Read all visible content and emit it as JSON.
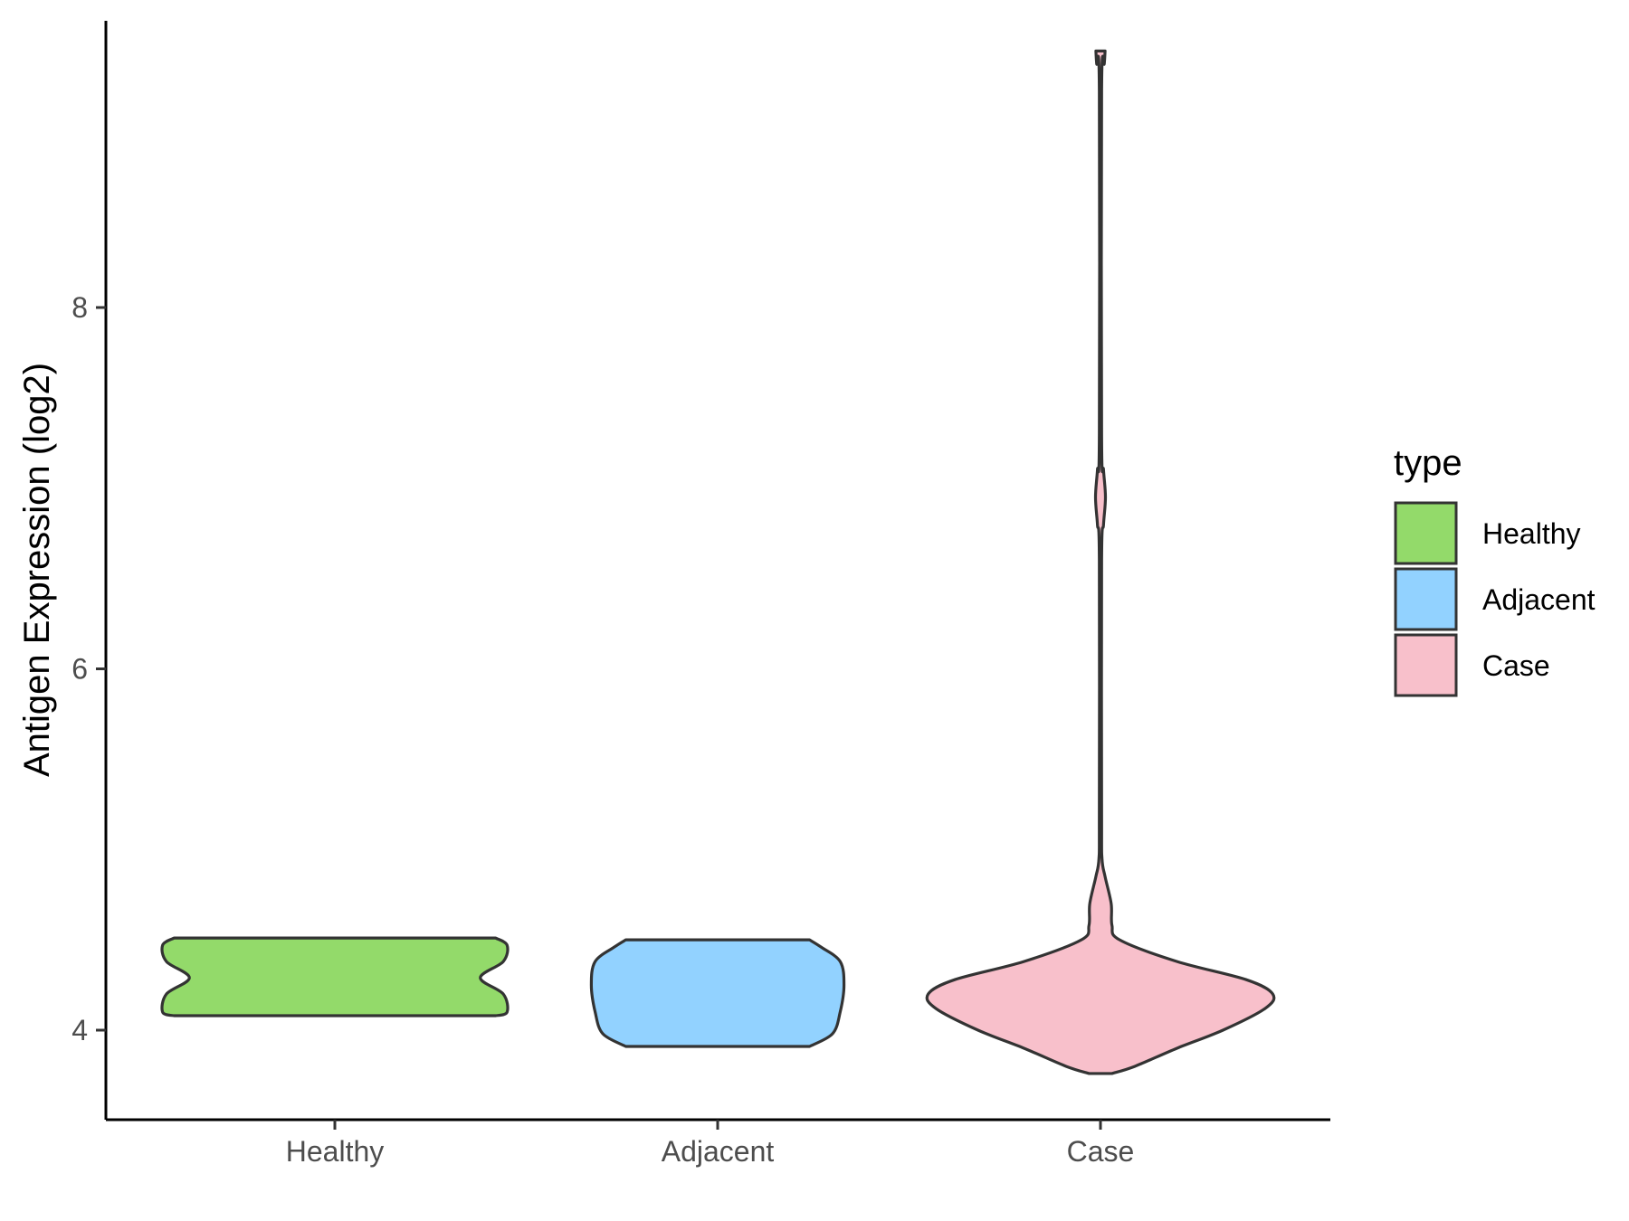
{
  "chart_data": {
    "type": "violin",
    "title": "",
    "xlabel": "",
    "ylabel": "Antigen Expression (log2)",
    "categories": [
      "Healthy",
      "Adjacent",
      "Case"
    ],
    "ylim": [
      3.5,
      9.6
    ],
    "yticks": [
      4,
      6,
      8
    ],
    "grid": false,
    "legend": {
      "title": "type",
      "position": "right",
      "entries": [
        {
          "label": "Healthy",
          "color": "#93DA6A"
        },
        {
          "label": "Adjacent",
          "color": "#92D2FF"
        },
        {
          "label": "Case",
          "color": "#F8C0CB"
        }
      ]
    },
    "outline_color": "#333333",
    "series": [
      {
        "category": "Healthy",
        "color": "#93DA6A",
        "y_min": 4.08,
        "y_max": 4.51,
        "density_profile": [
          {
            "y": 4.08,
            "halfwidth": 0.42
          },
          {
            "y": 4.1,
            "halfwidth": 0.45
          },
          {
            "y": 4.2,
            "halfwidth": 0.44
          },
          {
            "y": 4.29,
            "halfwidth": 0.38
          },
          {
            "y": 4.38,
            "halfwidth": 0.44
          },
          {
            "y": 4.47,
            "halfwidth": 0.45
          },
          {
            "y": 4.51,
            "halfwidth": 0.42
          }
        ]
      },
      {
        "category": "Adjacent",
        "color": "#92D2FF",
        "y_min": 3.91,
        "y_max": 4.5,
        "density_profile": [
          {
            "y": 3.91,
            "halfwidth": 0.24
          },
          {
            "y": 3.98,
            "halfwidth": 0.3
          },
          {
            "y": 4.1,
            "halfwidth": 0.32
          },
          {
            "y": 4.25,
            "halfwidth": 0.33
          },
          {
            "y": 4.38,
            "halfwidth": 0.32
          },
          {
            "y": 4.46,
            "halfwidth": 0.27
          },
          {
            "y": 4.5,
            "halfwidth": 0.24
          }
        ]
      },
      {
        "category": "Case",
        "color": "#F8C0CB",
        "y_min": 3.76,
        "y_max": 9.42,
        "density_profile": [
          {
            "y": 3.76,
            "halfwidth": 0.03
          },
          {
            "y": 3.8,
            "halfwidth": 0.09
          },
          {
            "y": 3.9,
            "halfwidth": 0.2
          },
          {
            "y": 4.0,
            "halfwidth": 0.32
          },
          {
            "y": 4.12,
            "halfwidth": 0.43
          },
          {
            "y": 4.2,
            "halfwidth": 0.45
          },
          {
            "y": 4.28,
            "halfwidth": 0.38
          },
          {
            "y": 4.38,
            "halfwidth": 0.2
          },
          {
            "y": 4.5,
            "halfwidth": 0.05
          },
          {
            "y": 4.58,
            "halfwidth": 0.03
          },
          {
            "y": 4.7,
            "halfwidth": 0.028
          },
          {
            "y": 4.85,
            "halfwidth": 0.012
          },
          {
            "y": 4.95,
            "halfwidth": 0.004
          },
          {
            "y": 5.2,
            "halfwidth": 0.003
          },
          {
            "y": 6.6,
            "halfwidth": 0.003
          },
          {
            "y": 6.8,
            "halfwidth": 0.008
          },
          {
            "y": 6.95,
            "halfwidth": 0.013
          },
          {
            "y": 7.1,
            "halfwidth": 0.008
          },
          {
            "y": 7.3,
            "halfwidth": 0.003
          },
          {
            "y": 9.2,
            "halfwidth": 0.003
          },
          {
            "y": 9.35,
            "halfwidth": 0.01
          },
          {
            "y": 9.42,
            "halfwidth": 0.012
          }
        ]
      }
    ]
  }
}
